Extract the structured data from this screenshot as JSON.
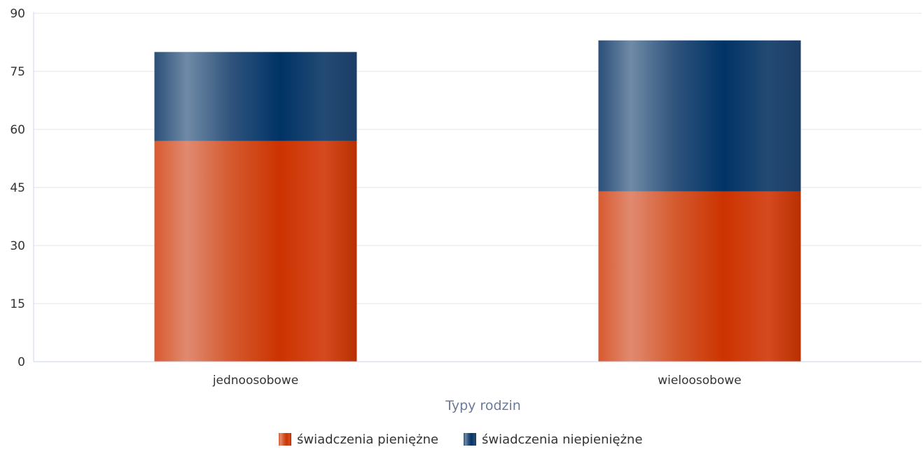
{
  "chart_data": {
    "type": "bar",
    "stacked": true,
    "categories": [
      "jednoosobowe",
      "wieloosobowe"
    ],
    "series": [
      {
        "name": "świadczenia pieniężne",
        "values": [
          57,
          44
        ],
        "color": "#cc3300"
      },
      {
        "name": "świadczenia niepieniężne",
        "values": [
          23,
          39
        ],
        "color": "#003366"
      }
    ],
    "xlabel": "Typy rodzin",
    "ylabel": "",
    "ylim": [
      0,
      90
    ],
    "yticks": [
      0,
      15,
      30,
      45,
      60,
      75,
      90
    ],
    "grid": true,
    "legend_position": "bottom-center"
  }
}
